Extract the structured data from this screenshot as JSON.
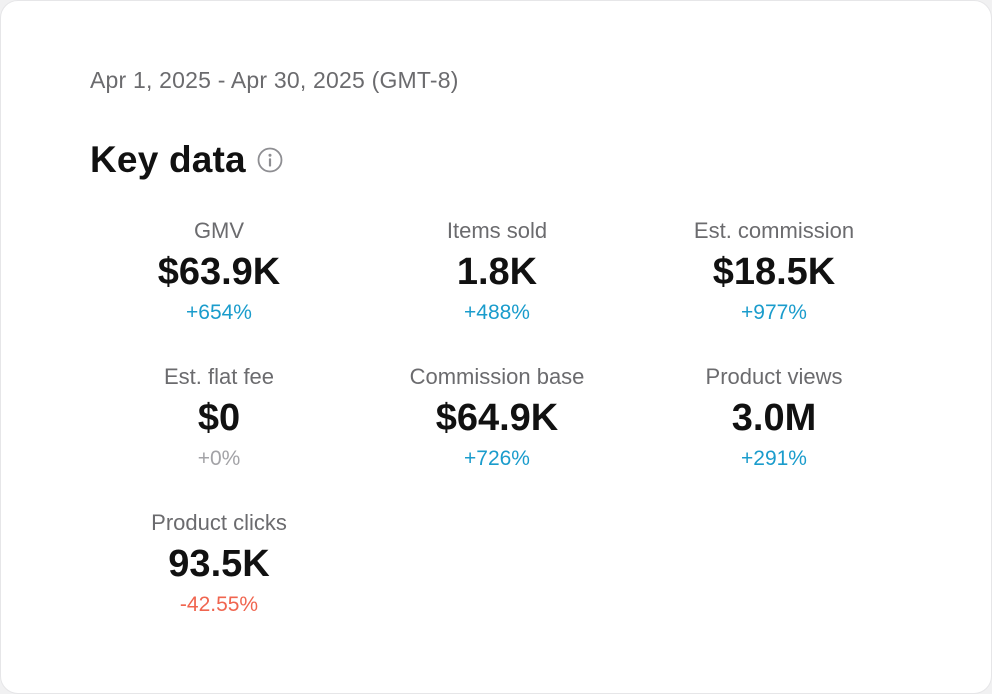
{
  "date_range": "Apr 1, 2025 - Apr 30, 2025 (GMT-8)",
  "title": "Key data",
  "info_icon": "info-circle-icon",
  "colors": {
    "positive": "#1a9ccc",
    "neutral": "#a3a3a7",
    "negative": "#f0654f"
  },
  "metrics": [
    {
      "label": "GMV",
      "value": "$63.9K",
      "change": "+654%",
      "trend": "positive"
    },
    {
      "label": "Items sold",
      "value": "1.8K",
      "change": "+488%",
      "trend": "positive"
    },
    {
      "label": "Est. commission",
      "value": "$18.5K",
      "change": "+977%",
      "trend": "positive"
    },
    {
      "label": "Est. flat fee",
      "value": "$0",
      "change": "+0%",
      "trend": "neutral"
    },
    {
      "label": "Commission base",
      "value": "$64.9K",
      "change": "+726%",
      "trend": "positive"
    },
    {
      "label": "Product views",
      "value": "3.0M",
      "change": "+291%",
      "trend": "positive"
    },
    {
      "label": "Product clicks",
      "value": "93.5K",
      "change": "-42.55%",
      "trend": "negative"
    }
  ]
}
